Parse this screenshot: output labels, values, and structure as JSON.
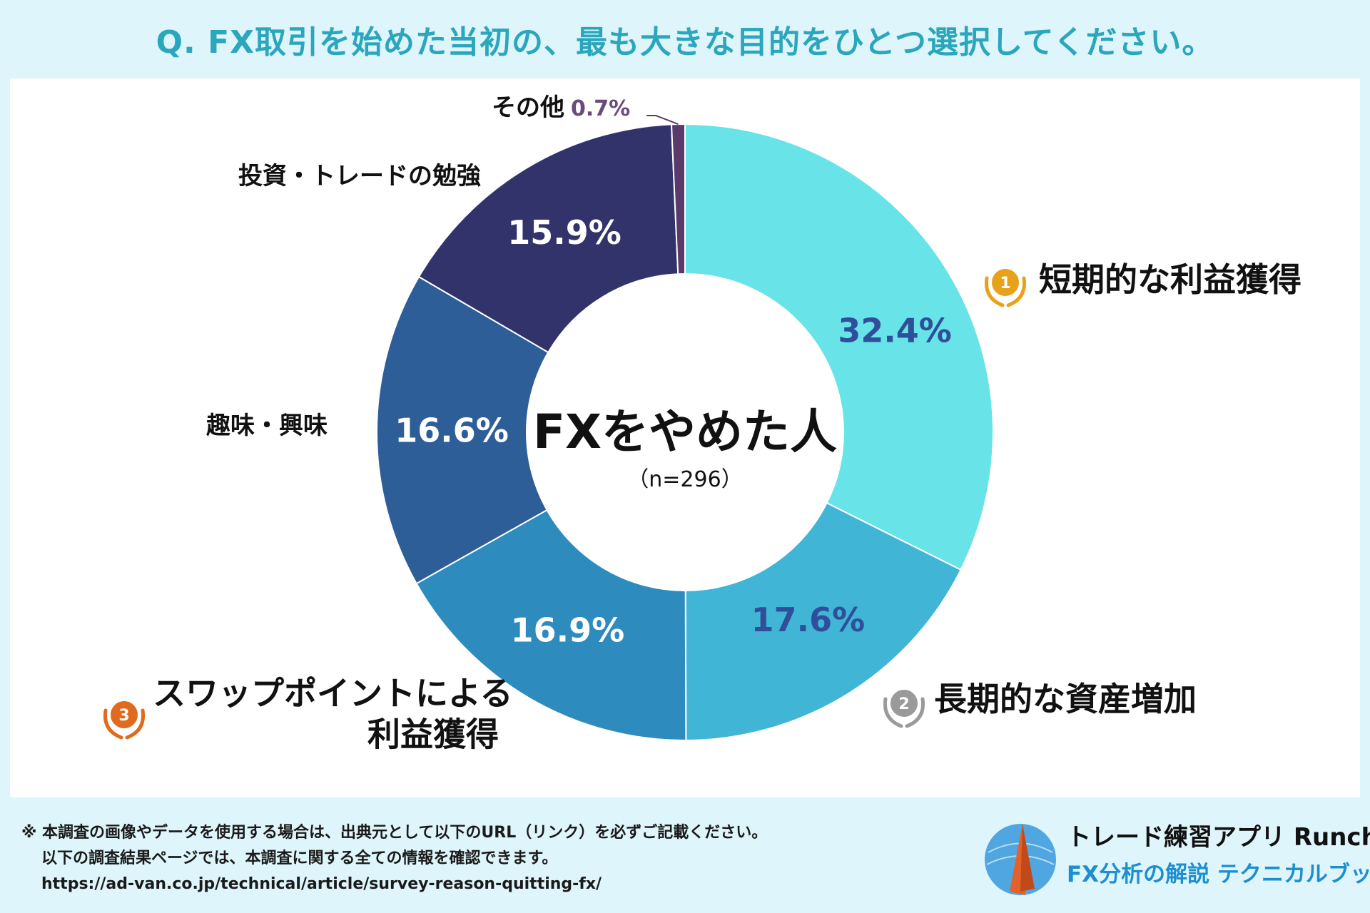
{
  "header": {
    "question": "Q. FX取引を始めた当初の、最も大きな目的をひとつ選択してください。"
  },
  "chart_data": {
    "type": "pie",
    "variant": "donut",
    "center_title": "FXをやめた人",
    "center_subtitle": "（n=296）",
    "unit": "%",
    "slices": [
      {
        "label": "短期的な利益獲得",
        "value": 32.4,
        "display": "32.4%",
        "color": "#68e3e8",
        "value_color": "#2f4f9a",
        "rank": "1"
      },
      {
        "label": "長期的な資産増加",
        "value": 17.6,
        "display": "17.6%",
        "color": "#40b5d5",
        "value_color": "#2f4f9a",
        "rank": "2"
      },
      {
        "label": "スワップポイントによる\n利益獲得",
        "value": 16.9,
        "display": "16.9%",
        "color": "#2e8bbd",
        "value_color": "#ffffff",
        "rank": "3"
      },
      {
        "label": "趣味・興味",
        "value": 16.6,
        "display": "16.6%",
        "color": "#2d5e97",
        "value_color": "#ffffff",
        "rank": ""
      },
      {
        "label": "投資・トレードの勉強",
        "value": 15.9,
        "display": "15.9%",
        "color": "#31336a",
        "value_color": "#ffffff",
        "rank": ""
      },
      {
        "label": "その他",
        "value": 0.7,
        "display": "0.7%",
        "color": "#5b3a6a",
        "value_color": "#6a4a7a",
        "rank": ""
      }
    ]
  },
  "medals": {
    "gold": "#e8a21a",
    "silver": "#9a9a9a",
    "bronze": "#e06a1e"
  },
  "footer": {
    "line1": "※ 本調査の画像やデータを使用する場合は、出典元として以下のURL（リンク）を必ずご記載ください。",
    "line2": "以下の調査結果ページでは、本調査に関する全ての情報を確認できます。",
    "url": "https://ad-van.co.jp/technical/article/survey-reason-quitting-fx/",
    "brand_app": "トレード練習アプリ  Runcha",
    "brand_book": "FX分析の解説  テクニカルブック"
  }
}
